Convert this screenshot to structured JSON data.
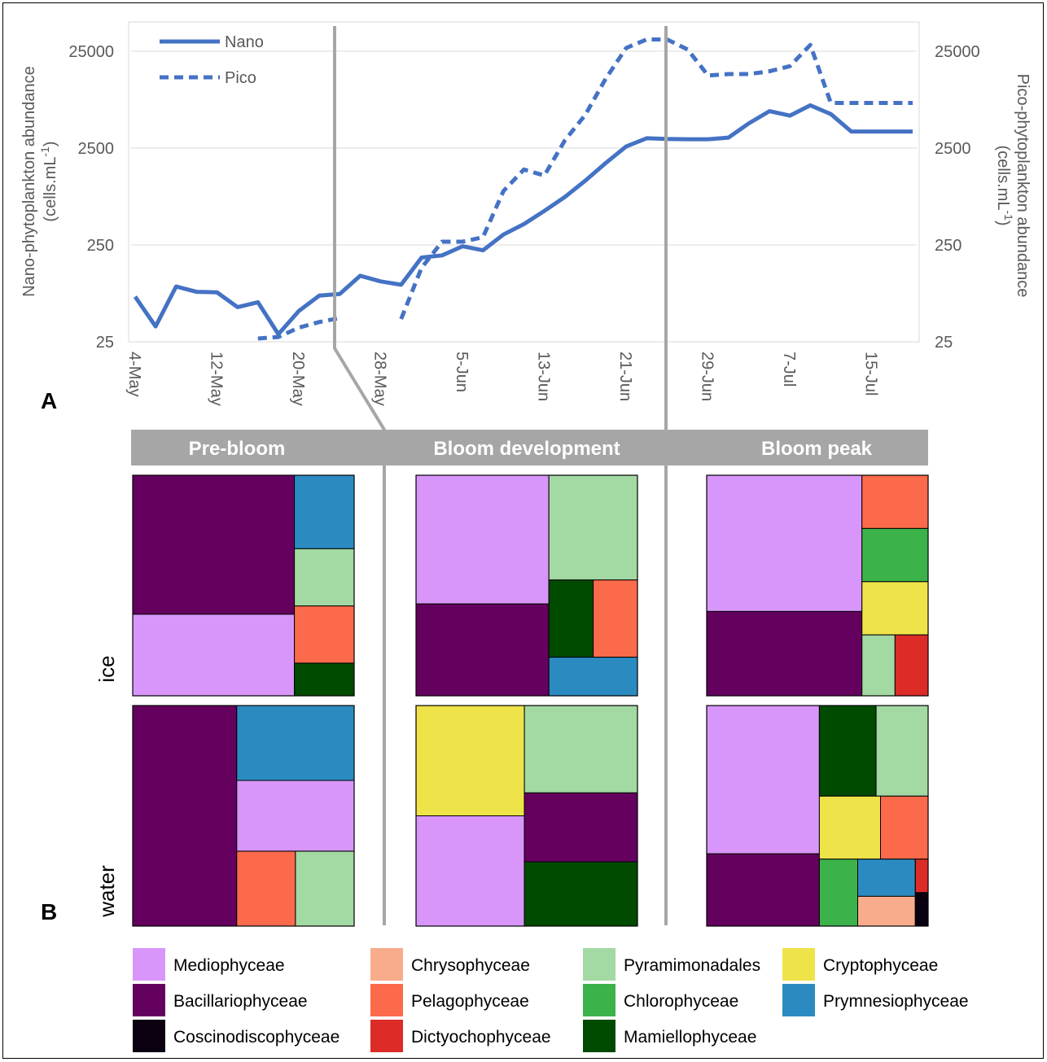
{
  "panel_labels": {
    "a": "A",
    "b": "B"
  },
  "chart_data": [
    {
      "type": "line",
      "panel": "A",
      "x": [
        "4-May",
        "6-May",
        "8-May",
        "10-May",
        "12-May",
        "14-May",
        "16-May",
        "18-May",
        "20-May",
        "22-May",
        "24-May",
        "26-May",
        "28-May",
        "30-May",
        "1-Jun",
        "3-Jun",
        "5-Jun",
        "7-Jun",
        "9-Jun",
        "11-Jun",
        "13-Jun",
        "15-Jun",
        "17-Jun",
        "19-Jun",
        "21-Jun",
        "23-Jun",
        "25-Jun",
        "27-Jun",
        "29-Jun",
        "1-Jul",
        "3-Jul",
        "5-Jul",
        "7-Jul",
        "9-Jul",
        "11-Jul",
        "13-Jul",
        "15-Jul",
        "17-Jul",
        "19-Jul"
      ],
      "x_ticks": [
        "4-May",
        "12-May",
        "20-May",
        "28-May",
        "5-Jun",
        "13-Jun",
        "21-Jun",
        "29-Jun",
        "7-Jul",
        "15-Jul"
      ],
      "series": [
        {
          "name": "Nano",
          "style": "solid",
          "color": "#4472C4",
          "values": [
            73,
            36,
            93,
            82,
            81,
            57,
            64,
            30,
            52,
            75,
            78,
            120,
            105,
            97,
            185,
            195,
            242,
            220,
            320,
            410,
            560,
            780,
            1150,
            1750,
            2600,
            3150,
            3100,
            3080,
            3080,
            3200,
            4500,
            6000,
            5400,
            6900,
            5600,
            3700,
            3700,
            3700,
            3700
          ]
        },
        {
          "name": "Pico",
          "style": "dashed",
          "color": "#4472C4",
          "values": [
            null,
            null,
            null,
            null,
            null,
            null,
            27,
            28,
            35,
            40,
            44,
            null,
            null,
            43,
            145,
            270,
            270,
            300,
            900,
            1500,
            1300,
            3000,
            5500,
            13000,
            27000,
            33000,
            33000,
            26000,
            14000,
            14500,
            14500,
            15500,
            17500,
            29000,
            7300,
            7300,
            7300,
            7300,
            7300
          ]
        }
      ],
      "ylabel_left_line1": "Nano-phytoplankton abundance",
      "ylabel_left_line2": "(cells.mL",
      "ylabel_right_line1": "Pico-phytoplankton abundance",
      "ylabel_right_line2": "(cells.mL",
      "ylabel_superscript": "-1",
      "ylabel_close": ")",
      "y_scale": "log",
      "ylim": [
        25,
        50000
      ],
      "y_ticks": [
        "25",
        "250",
        "2500",
        "25000"
      ],
      "grid": true,
      "legend_position": "top-left",
      "phase_dividers": [
        "23-May",
        "24-Jun"
      ]
    },
    {
      "type": "treemap",
      "panel": "B",
      "phases": [
        "Pre-bloom",
        "Bloom development",
        "Bloom peak"
      ],
      "environments": [
        "ice",
        "water"
      ],
      "phase_header_color": "#a6a6a6",
      "legend": [
        {
          "name": "Mediophyceae",
          "color": "#d896fa"
        },
        {
          "name": "Chrysophyceae",
          "color": "#f8ac8c"
        },
        {
          "name": "Pyramimonadales",
          "color": "#a3d9a3"
        },
        {
          "name": "Cryptophyceae",
          "color": "#efe34a"
        },
        {
          "name": "Bacillariophyceae",
          "color": "#64005e"
        },
        {
          "name": "Pelagophyceae",
          "color": "#fb6a4a"
        },
        {
          "name": "Chlorophyceae",
          "color": "#3cb24a"
        },
        {
          "name": "Prymnesiophyceae",
          "color": "#2b8bc1"
        },
        {
          "name": "Coscinodiscophyceae",
          "color": "#0a0010"
        },
        {
          "name": "Dictyochophyceae",
          "color": "#dd2b27"
        },
        {
          "name": "Mamiellophyceae",
          "color": "#004b00"
        }
      ],
      "tiles": {
        "pre_ice": [
          {
            "taxon": "Mediophyceae",
            "share": 0.27
          },
          {
            "taxon": "Bacillariophyceae",
            "share": 0.46
          },
          {
            "taxon": "Pyramimonadales",
            "share": 0.07
          },
          {
            "taxon": "Prymnesiophyceae",
            "share": 0.09
          },
          {
            "taxon": "Mamiellophyceae",
            "share": 0.04
          },
          {
            "taxon": "Pelagophyceae",
            "share": 0.07
          }
        ],
        "dev_ice": [
          {
            "taxon": "Mediophyceae",
            "share": 0.35
          },
          {
            "taxon": "Bacillariophyceae",
            "share": 0.25
          },
          {
            "taxon": "Pyramimonadales",
            "share": 0.19
          },
          {
            "taxon": "Mamiellophyceae",
            "share": 0.07
          },
          {
            "taxon": "Pelagophyceae",
            "share": 0.07
          },
          {
            "taxon": "Prymnesiophyceae",
            "share": 0.07
          }
        ],
        "peak_ice": [
          {
            "taxon": "Mediophyceae",
            "share": 0.42
          },
          {
            "taxon": "Bacillariophyceae",
            "share": 0.26
          },
          {
            "taxon": "Pelagophyceae",
            "share": 0.07
          },
          {
            "taxon": "Pyramimonadales",
            "share": 0.04
          },
          {
            "taxon": "Chlorophyceae",
            "share": 0.07
          },
          {
            "taxon": "Cryptophyceae",
            "share": 0.07
          },
          {
            "taxon": "Dictyochophyceae",
            "share": 0.04
          }
        ],
        "pre_water": [
          {
            "taxon": "Mediophyceae",
            "share": 0.17
          },
          {
            "taxon": "Prymnesiophyceae",
            "share": 0.18
          },
          {
            "taxon": "Pelagophyceae",
            "share": 0.09
          },
          {
            "taxon": "Pyramimonadales",
            "share": 0.09
          },
          {
            "taxon": "Bacillariophyceae",
            "share": 0.47
          }
        ],
        "dev_water": [
          {
            "taxon": "Cryptophyceae",
            "share": 0.23
          },
          {
            "taxon": "Bacillariophyceae",
            "share": 0.15
          },
          {
            "taxon": "Mediophyceae",
            "share": 0.23
          },
          {
            "taxon": "Pyramimonadales",
            "share": 0.19
          },
          {
            "taxon": "Mamiellophyceae",
            "share": 0.14
          }
        ],
        "peak_water": [
          {
            "taxon": "Mediophyceae",
            "share": 0.39
          },
          {
            "taxon": "Bacillariophyceae",
            "share": 0.19
          },
          {
            "taxon": "Mamiellophyceae",
            "share": 0.12
          },
          {
            "taxon": "Cryptophyceae",
            "share": 0.09
          },
          {
            "taxon": "Chlorophyceae",
            "share": 0.06
          },
          {
            "taxon": "Chrysophyceae",
            "share": 0.04
          },
          {
            "taxon": "Pyramimonadales",
            "share": 0.11
          },
          {
            "taxon": "Pelagophyceae",
            "share": 0.07
          },
          {
            "taxon": "Prymnesiophyceae",
            "share": 0.05
          },
          {
            "taxon": "Dictyochophyceae",
            "share": 0.01
          },
          {
            "taxon": "Coscinodiscophyceae",
            "share": 0.01
          }
        ]
      }
    }
  ]
}
